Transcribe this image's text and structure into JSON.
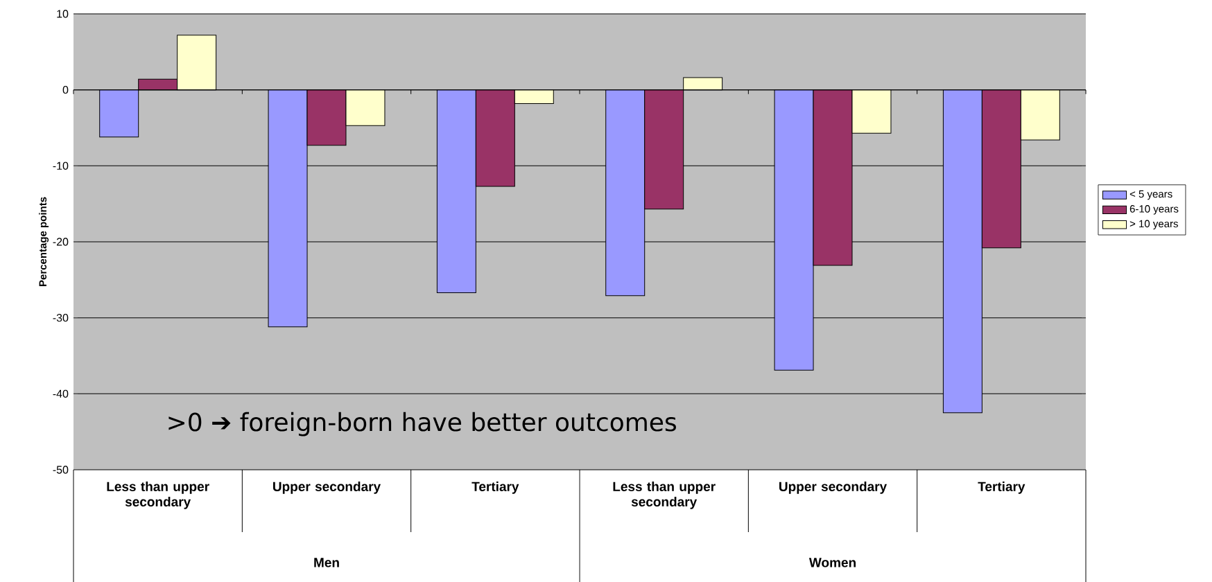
{
  "chart_data": {
    "type": "bar",
    "ylabel": "Percentage points",
    "categories": [
      "Less than upper secondary",
      "Upper secondary",
      "Tertiary",
      "Less than upper secondary",
      "Upper secondary",
      "Tertiary"
    ],
    "series": [
      {
        "name": "< 5 years",
        "color": "#9999ff",
        "values": [
          -6.2,
          -31.2,
          -26.7,
          -27.1,
          -36.9,
          -42.5
        ]
      },
      {
        "name": "6-10 years",
        "color": "#993366",
        "values": [
          1.4,
          -7.3,
          -12.7,
          -15.7,
          -23.1,
          -20.8
        ]
      },
      {
        "name": "> 10 years",
        "color": "#ffffcc",
        "values": [
          7.2,
          -4.7,
          -1.8,
          1.6,
          -5.7,
          -6.6
        ]
      }
    ],
    "ylim": [
      -50,
      10
    ],
    "yticks": [
      -50,
      -40,
      -30,
      -20,
      -10,
      0,
      10
    ],
    "grid": "y",
    "legend": "right",
    "annotations": [
      ">0 ➔ foreign-born have better outcomes",
      "Men",
      "Women"
    ]
  }
}
